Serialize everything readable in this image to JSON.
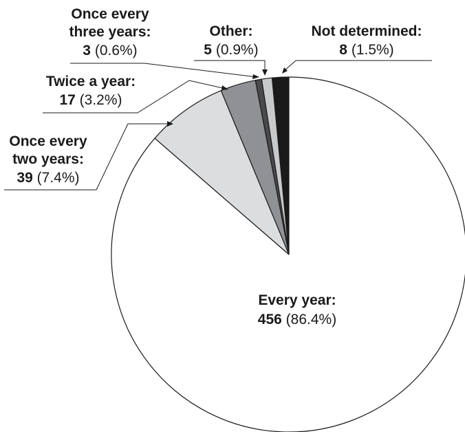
{
  "chart_data": {
    "type": "pie",
    "title": "",
    "start": "top",
    "direction": "counterclockwise",
    "slices": [
      {
        "label": "Not determined:",
        "count": 8,
        "percent_text": "(1.5%)",
        "color": "#1a1a1a"
      },
      {
        "label": "Other:",
        "count": 5,
        "percent_text": "(0.9%)",
        "color": "#c8c9cb"
      },
      {
        "label": "Once every three years:",
        "label_lines": [
          "Once every",
          "three years:"
        ],
        "count": 3,
        "percent_text": "(0.6%)",
        "color": "#4a4a4d"
      },
      {
        "label": "Twice a year:",
        "count": 17,
        "percent_text": "(3.2%)",
        "color": "#8f9194"
      },
      {
        "label": "Once every two years:",
        "label_lines": [
          "Once every",
          "two years:"
        ],
        "count": 39,
        "percent_text": "(7.4%)",
        "color": "#dcdddf"
      },
      {
        "label": "Every year:",
        "count": 456,
        "percent_text": "(86.4%)",
        "color": "#ffffff"
      }
    ]
  }
}
